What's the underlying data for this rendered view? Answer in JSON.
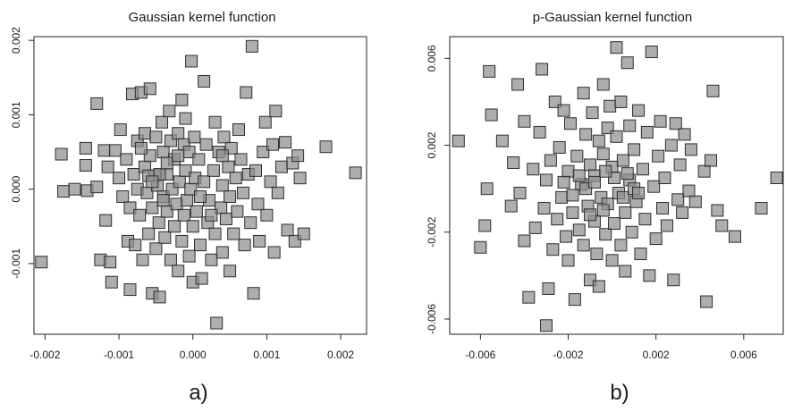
{
  "chart_data": [
    {
      "type": "scatter",
      "panel_label": "a)",
      "title": "Gaussian kernel function",
      "xlabel": "",
      "ylabel": "",
      "xlim": [
        -0.00215,
        0.00235
      ],
      "ylim": [
        -0.00195,
        0.00205
      ],
      "xticks": [
        -0.002,
        -0.001,
        0.0,
        0.001,
        0.002
      ],
      "xtick_labels": [
        "-0.002",
        "-0.001",
        "0.000",
        "0.001",
        "0.002"
      ],
      "yticks": [
        -0.001,
        0.0,
        0.001,
        0.002
      ],
      "ytick_labels": [
        "-0.001",
        "0.000",
        "0.001",
        "0.002"
      ],
      "marker": "square",
      "marker_color": "#8f8f8f",
      "points": [
        [
          -0.00205,
          -0.00098
        ],
        [
          -0.00178,
          0.00047
        ],
        [
          -0.00175,
          -3e-05
        ],
        [
          -0.0016,
          0.0
        ],
        [
          -0.00145,
          0.00055
        ],
        [
          -0.00145,
          0.00032
        ],
        [
          -0.00143,
          -2e-05
        ],
        [
          -0.0013,
          0.00115
        ],
        [
          -0.0013,
          3e-05
        ],
        [
          -0.00125,
          -0.00095
        ],
        [
          -0.0012,
          0.00052
        ],
        [
          -0.00118,
          -0.00042
        ],
        [
          -0.00115,
          0.0003
        ],
        [
          -0.00112,
          -0.00098
        ],
        [
          -0.0011,
          -0.00125
        ],
        [
          -0.00105,
          0.00052
        ],
        [
          -0.001,
          0.00015
        ],
        [
          -0.00098,
          0.0008
        ],
        [
          -0.00095,
          -0.0001
        ],
        [
          -0.0009,
          0.0004
        ],
        [
          -0.00088,
          -0.0007
        ],
        [
          -0.00085,
          -0.00135
        ],
        [
          -0.00085,
          -0.00025
        ],
        [
          -0.00082,
          0.00128
        ],
        [
          -0.0008,
          0.0002
        ],
        [
          -0.00078,
          -0.00075
        ],
        [
          -0.00075,
          0.00065
        ],
        [
          -0.00075,
          0.0
        ],
        [
          -0.00072,
          -0.00035
        ],
        [
          -0.0007,
          0.0013
        ],
        [
          -0.00068,
          -0.00095
        ],
        [
          -0.00065,
          0.00075
        ],
        [
          -0.00065,
          0.0003
        ],
        [
          -0.00062,
          -5e-05
        ],
        [
          -0.0006,
          -0.0006
        ],
        [
          -0.00058,
          0.00135
        ],
        [
          -0.00058,
          0.00045
        ],
        [
          -0.00055,
          -0.00025
        ],
        [
          -0.00055,
          -0.0014
        ],
        [
          -0.00052,
          0.00018
        ],
        [
          -0.0005,
          -0.0008
        ],
        [
          -0.0005,
          0.0007
        ],
        [
          -0.00048,
          5e-05
        ],
        [
          -0.00046,
          -0.00045
        ],
        [
          -0.00045,
          -0.00145
        ],
        [
          -0.00042,
          0.0009
        ],
        [
          -0.0004,
          0.0005
        ],
        [
          -0.0004,
          -0.0001
        ],
        [
          -0.00038,
          -0.00065
        ],
        [
          -0.00035,
          0.0002
        ],
        [
          -0.00035,
          -0.0003
        ],
        [
          -0.00032,
          0.00105
        ],
        [
          -0.0003,
          -0.00095
        ],
        [
          -0.0003,
          0.00065
        ],
        [
          -0.00028,
          0.0
        ],
        [
          -0.00025,
          -0.0005
        ],
        [
          -0.00025,
          0.0004
        ],
        [
          -0.00022,
          -0.0002
        ],
        [
          -0.0002,
          0.00075
        ],
        [
          -0.0002,
          -0.0011
        ],
        [
          -0.00018,
          0.0001
        ],
        [
          -0.00015,
          0.0012
        ],
        [
          -0.00015,
          -0.0007
        ],
        [
          -0.00012,
          0.0006
        ],
        [
          -0.00012,
          -0.00035
        ],
        [
          -0.0001,
          0.00095
        ],
        [
          -0.0001,
          0.00025
        ],
        [
          -8e-05,
          -0.00015
        ],
        [
          -5e-05,
          -0.0009
        ],
        [
          -5e-05,
          0.0005
        ],
        [
          -3e-05,
          0.0
        ],
        [
          -2e-05,
          0.00172
        ],
        [
          0.0,
          -0.00125
        ],
        [
          0.0,
          -0.0005
        ],
        [
          2e-05,
          0.0007
        ],
        [
          3e-05,
          0.00015
        ],
        [
          5e-05,
          -0.0003
        ],
        [
          8e-05,
          0.0004
        ],
        [
          0.0001,
          -0.00075
        ],
        [
          0.00012,
          -0.0012
        ],
        [
          0.00015,
          0.00145
        ],
        [
          0.00015,
          0.0001
        ],
        [
          0.00018,
          0.0006
        ],
        [
          0.0002,
          -0.00045
        ],
        [
          0.00022,
          -0.00015
        ],
        [
          0.00025,
          -0.00095
        ],
        [
          0.00028,
          0.00025
        ],
        [
          0.0003,
          0.0009
        ],
        [
          0.0003,
          -0.0006
        ],
        [
          0.00032,
          -0.0018
        ],
        [
          0.00035,
          0.0005
        ],
        [
          0.00038,
          -0.00025
        ],
        [
          0.0004,
          5e-05
        ],
        [
          0.0004,
          -0.00085
        ],
        [
          0.00042,
          0.0007
        ],
        [
          0.00045,
          -0.0004
        ],
        [
          0.00048,
          0.0003
        ],
        [
          0.0005,
          -0.0011
        ],
        [
          0.0005,
          -0.0001
        ],
        [
          0.00052,
          0.00055
        ],
        [
          0.00055,
          -0.0006
        ],
        [
          0.00058,
          0.00015
        ],
        [
          0.0006,
          -0.0003
        ],
        [
          0.00062,
          0.0008
        ],
        [
          0.00065,
          0.0004
        ],
        [
          0.00068,
          -5e-05
        ],
        [
          0.0007,
          -0.00075
        ],
        [
          0.00072,
          0.0013
        ],
        [
          0.00075,
          0.0002
        ],
        [
          0.00078,
          -0.00045
        ],
        [
          0.0008,
          0.00192
        ],
        [
          0.00082,
          -0.0014
        ],
        [
          0.00085,
          0.00025
        ],
        [
          0.00088,
          -0.0002
        ],
        [
          0.0009,
          -0.0007
        ],
        [
          0.00095,
          0.0005
        ],
        [
          0.00098,
          0.0009
        ],
        [
          0.001,
          -0.00035
        ],
        [
          0.00105,
          0.0001
        ],
        [
          0.00108,
          0.0006
        ],
        [
          0.0011,
          -0.00085
        ],
        [
          0.00112,
          0.00105
        ],
        [
          0.00115,
          -5e-05
        ],
        [
          0.0012,
          0.0003
        ],
        [
          0.00125,
          0.00063
        ],
        [
          0.00128,
          -0.00055
        ],
        [
          0.00135,
          0.00035
        ],
        [
          0.00138,
          -0.0007
        ],
        [
          0.00142,
          0.00045
        ],
        [
          0.00145,
          0.00015
        ],
        [
          0.0015,
          -0.0006
        ],
        [
          0.0018,
          0.00057
        ],
        [
          0.0022,
          0.00022
        ],
        [
          -0.0006,
          0.00018
        ],
        [
          -0.00045,
          0.0002
        ],
        [
          -0.00035,
          0.00035
        ],
        [
          -0.00055,
          0.0001
        ],
        [
          -0.0004,
          -0.00015
        ],
        [
          -0.0002,
          0.00045
        ],
        [
          0.0001,
          -0.0001
        ],
        [
          0.00025,
          -0.00035
        ],
        [
          -0.0007,
          0.00055
        ],
        [
          0.0004,
          0.00045
        ]
      ]
    },
    {
      "type": "scatter",
      "panel_label": "b)",
      "title": "p-Gaussian kernel function",
      "xlabel": "",
      "ylabel": "",
      "xlim": [
        -0.0074,
        0.0078
      ],
      "ylim": [
        -0.0067,
        0.007
      ],
      "xticks": [
        -0.006,
        -0.002,
        0.002,
        0.006
      ],
      "xtick_labels": [
        "-0.006",
        "-0.002",
        "0.002",
        "0.006"
      ],
      "yticks": [
        -0.006,
        -0.002,
        0.002,
        0.006
      ],
      "ytick_labels": [
        "-0.006",
        "-0.002",
        "0.002",
        "0.006"
      ],
      "marker": "square",
      "marker_color": "#8f8f8f",
      "points": [
        [
          -0.007,
          0.0022
        ],
        [
          -0.006,
          -0.0027
        ],
        [
          -0.0058,
          -0.0017
        ],
        [
          -0.0057,
          0.0
        ],
        [
          -0.0056,
          0.0054
        ],
        [
          -0.0055,
          0.0034
        ],
        [
          -0.005,
          0.0022
        ],
        [
          -0.0046,
          -0.0008
        ],
        [
          -0.0045,
          0.0012
        ],
        [
          -0.0043,
          0.0048
        ],
        [
          -0.0042,
          -0.0002
        ],
        [
          -0.004,
          0.0031
        ],
        [
          -0.004,
          -0.0024
        ],
        [
          -0.0038,
          -0.005
        ],
        [
          -0.0036,
          0.0009
        ],
        [
          -0.0035,
          -0.0018
        ],
        [
          -0.0033,
          0.0026
        ],
        [
          -0.0032,
          0.0055
        ],
        [
          -0.0031,
          -0.0009
        ],
        [
          -0.003,
          -0.0063
        ],
        [
          -0.003,
          0.0004
        ],
        [
          -0.0029,
          -0.0046
        ],
        [
          -0.0028,
          0.0013
        ],
        [
          -0.0027,
          -0.0028
        ],
        [
          -0.0026,
          0.004
        ],
        [
          -0.0025,
          -0.0014
        ],
        [
          -0.0024,
          0.0019
        ],
        [
          -0.0023,
          -0.0004
        ],
        [
          -0.0022,
          0.0036
        ],
        [
          -0.0021,
          -0.0022
        ],
        [
          -0.002,
          0.0008
        ],
        [
          -0.002,
          -0.0033
        ],
        [
          -0.0019,
          0.003
        ],
        [
          -0.0018,
          -0.0011
        ],
        [
          -0.0017,
          -0.0051
        ],
        [
          -0.0016,
          0.0015
        ],
        [
          -0.0015,
          -0.0019
        ],
        [
          -0.0014,
          0.0002
        ],
        [
          -0.0013,
          0.0044
        ],
        [
          -0.0013,
          -0.0026
        ],
        [
          -0.0012,
          0.0025
        ],
        [
          -0.0011,
          -0.0008
        ],
        [
          -0.001,
          -0.0042
        ],
        [
          -0.001,
          0.0011
        ],
        [
          -0.0009,
          0.0035
        ],
        [
          -0.0008,
          -0.0015
        ],
        [
          -0.0008,
          0.0006
        ],
        [
          -0.0007,
          -0.003
        ],
        [
          -0.0006,
          0.0022
        ],
        [
          -0.0006,
          -0.0045
        ],
        [
          -0.0005,
          -0.0004
        ],
        [
          -0.0004,
          0.0048
        ],
        [
          -0.0004,
          0.0016
        ],
        [
          -0.0003,
          -0.0021
        ],
        [
          -0.0002,
          0.0028
        ],
        [
          -0.0002,
          -0.0007
        ],
        [
          -0.0001,
          0.0038
        ],
        [
          0.0,
          -0.0033
        ],
        [
          0.0,
          0.001
        ],
        [
          0.0001,
          -0.0016
        ],
        [
          0.0002,
          0.0065
        ],
        [
          0.0002,
          0.0024
        ],
        [
          0.0003,
          -0.0002
        ],
        [
          0.0004,
          -0.0026
        ],
        [
          0.0004,
          0.004
        ],
        [
          0.0005,
          0.0013
        ],
        [
          0.0006,
          -0.0011
        ],
        [
          0.0006,
          -0.0038
        ],
        [
          0.0007,
          0.0058
        ],
        [
          0.0008,
          0.0029
        ],
        [
          0.0008,
          0.0004
        ],
        [
          0.0009,
          -0.002
        ],
        [
          0.001,
          0.0018
        ],
        [
          0.0011,
          -0.0006
        ],
        [
          0.0012,
          0.0036
        ],
        [
          0.0013,
          -0.003
        ],
        [
          0.0014,
          0.0009
        ],
        [
          0.0015,
          -0.0014
        ],
        [
          0.0016,
          0.0026
        ],
        [
          0.0017,
          -0.004
        ],
        [
          0.0018,
          0.0063
        ],
        [
          0.0019,
          0.0001
        ],
        [
          0.002,
          -0.0023
        ],
        [
          0.0021,
          0.0015
        ],
        [
          0.0022,
          0.0031
        ],
        [
          0.0023,
          -0.0009
        ],
        [
          0.0024,
          0.0005
        ],
        [
          0.0025,
          -0.0017
        ],
        [
          0.0027,
          0.002
        ],
        [
          0.0028,
          -0.0042
        ],
        [
          0.0029,
          0.003
        ],
        [
          0.003,
          -0.0005
        ],
        [
          0.0031,
          0.0011
        ],
        [
          0.0032,
          -0.0011
        ],
        [
          0.0033,
          0.0025
        ],
        [
          0.0035,
          -0.0001
        ],
        [
          0.0036,
          0.0018
        ],
        [
          0.0038,
          -0.0006
        ],
        [
          0.0042,
          0.0008
        ],
        [
          0.0043,
          -0.0052
        ],
        [
          0.0045,
          0.0013
        ],
        [
          0.0046,
          0.0045
        ],
        [
          0.0048,
          -0.001
        ],
        [
          0.005,
          -0.0017
        ],
        [
          0.0056,
          -0.0022
        ],
        [
          0.0068,
          -0.0009
        ],
        [
          0.0075,
          0.0005
        ],
        [
          -0.0022,
          0.0003
        ],
        [
          -0.0018,
          -0.0003
        ],
        [
          -0.0012,
          0.0
        ],
        [
          -0.0008,
          0.0003
        ],
        [
          -0.0004,
          -0.001
        ],
        [
          0.0001,
          0.0005
        ],
        [
          0.0005,
          -0.0004
        ],
        [
          0.001,
          0.0
        ],
        [
          -0.0015,
          0.0006
        ],
        [
          -0.0003,
          0.0008
        ],
        [
          0.0007,
          0.0007
        ],
        [
          -0.001,
          -0.0012
        ],
        [
          0.0012,
          -0.0002
        ]
      ]
    }
  ]
}
